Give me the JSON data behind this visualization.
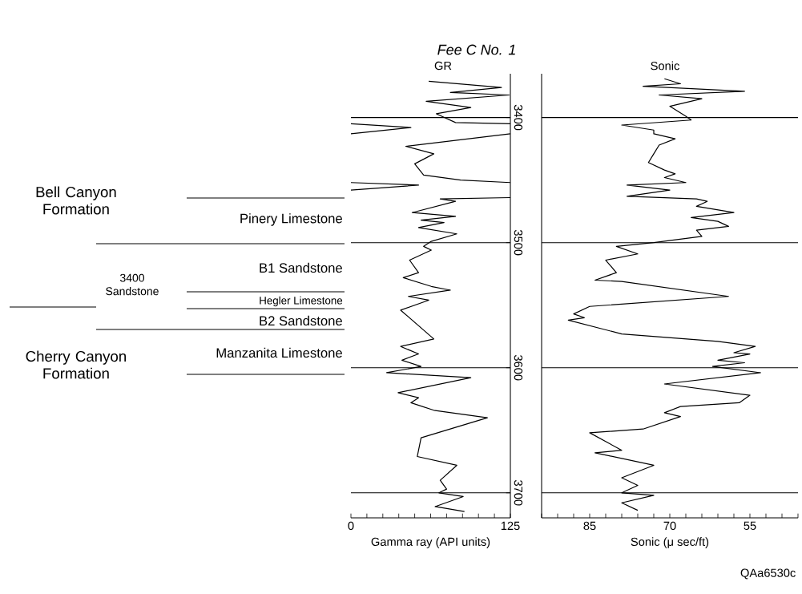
{
  "chart_data": [
    {
      "type": "other",
      "annotations": [
        "Bell Canyon Formation",
        "Cherry Canyon Formation",
        "3400 Sandstone",
        "Pinery Limestone",
        "B1 Sandstone",
        "Hegler Limestone",
        "B2 Sandstone",
        "Manzanita Limestone"
      ]
    },
    {
      "type": "line",
      "title": "Fee C No. 1",
      "subtitle": "GR",
      "xlabel": "Gamma ray (API units)",
      "xlim": [
        0,
        125
      ],
      "xticks": [
        0,
        {
          "value": 12.5,
          "label": null
        },
        {
          "value": 25,
          "label": null
        },
        {
          "value": 37.5,
          "label": null
        },
        {
          "value": 50,
          "label": null
        },
        {
          "value": 62.5,
          "label": null
        },
        {
          "value": 75,
          "label": null
        },
        {
          "value": 87.5,
          "label": null
        },
        {
          "value": 100,
          "label": null
        },
        {
          "value": 112.5,
          "label": null
        },
        125
      ],
      "ylim": [
        3720,
        3365
      ],
      "yticks": [
        3400,
        3500,
        3600,
        3700
      ],
      "series": [
        {
          "color": "#000000",
          "x": [
            61,
            118,
            78,
            124,
            59,
            94,
            67,
            82,
            125,
            null,
            0,
            47,
            0,
            null,
            125,
            43,
            65,
            50,
            57,
            86,
            125,
            null,
            0,
            53,
            0,
            null,
            125,
            70,
            82,
            48,
            82,
            55,
            73,
            53,
            83,
            63,
            57,
            63,
            46,
            53,
            41,
            63,
            78,
            45,
            61,
            39,
            65,
            39,
            53,
            40,
            55,
            28,
            94,
            37,
            53,
            47,
            65,
            107,
            55,
            52,
            83,
            70,
            75,
            69,
            88,
            66,
            89
          ],
          "values": [
            3371,
            3376,
            3380,
            3382,
            3387,
            3392,
            3397,
            3404,
            3405,
            null,
            3405,
            3408,
            3413,
            null,
            3413,
            3423,
            3429,
            3437,
            3446,
            3450,
            3452,
            null,
            3452,
            3454,
            3458,
            null,
            3464,
            3465,
            3467,
            3476,
            3479,
            3482,
            3484,
            3488,
            3493,
            3499,
            3503,
            3506,
            3514,
            3524,
            3528,
            3535,
            3538,
            3543,
            3546,
            3554,
            3577,
            3583,
            3589,
            3594,
            3599,
            3604,
            3608,
            3620,
            3624,
            3628,
            3634,
            3640,
            3656,
            3671,
            3678,
            3690,
            3697,
            3700,
            3703,
            3711,
            3715
          ]
        }
      ],
      "ref_lines": [
        {
          "axis": "y",
          "value": 3400
        },
        {
          "axis": "y",
          "value": 3500
        },
        {
          "axis": "y",
          "value": 3600
        },
        {
          "axis": "y",
          "value": 3700
        }
      ]
    },
    {
      "type": "line",
      "title": "Sonic",
      "xlabel": "Sonic (μ sec/ft)",
      "xlim": [
        94,
        46
      ],
      "xticks": [
        {
          "value": 94,
          "label": null
        },
        {
          "value": 91,
          "label": null
        },
        {
          "value": 88,
          "label": null
        },
        85,
        {
          "value": 82,
          "label": null
        },
        {
          "value": 79,
          "label": null
        },
        {
          "value": 76,
          "label": null
        },
        {
          "value": 73,
          "label": null
        },
        70,
        {
          "value": 67,
          "label": null
        },
        {
          "value": 64,
          "label": null
        },
        {
          "value": 61,
          "label": null
        },
        {
          "value": 58,
          "label": null
        },
        55,
        {
          "value": 52,
          "label": null
        },
        {
          "value": 49,
          "label": null
        },
        {
          "value": 46,
          "label": null
        }
      ],
      "ylim": [
        3720,
        3365
      ],
      "tick_labels": "x",
      "series": [
        {
          "color": "#000000",
          "x": [
            71,
            68,
            75,
            56,
            72,
            64,
            70,
            67,
            66,
            79,
            73,
            73,
            69,
            72,
            73,
            74,
            71,
            69,
            71,
            67,
            78,
            70,
            78,
            65,
            63,
            65,
            58,
            66,
            61,
            59,
            65,
            64,
            73,
            80,
            76,
            82,
            80,
            84,
            79,
            59,
            85,
            88,
            86,
            89,
            79,
            61,
            54,
            58,
            55,
            61,
            56,
            62,
            53,
            71,
            55,
            57,
            68,
            71,
            68,
            75,
            85,
            79,
            84,
            73,
            79,
            76,
            79,
            73,
            79,
            76
          ],
          "values": [
            3369,
            3373,
            3375,
            3379,
            3382,
            3385,
            3391,
            3399,
            3402,
            3406,
            3410,
            3413,
            3417,
            3422,
            3429,
            3436,
            3442,
            3445,
            3448,
            3452,
            3454,
            3458,
            3463,
            3465,
            3467,
            3471,
            3476,
            3480,
            3483,
            3487,
            3490,
            3495,
            3500,
            3503,
            3509,
            3514,
            3524,
            3530,
            3531,
            3543,
            3551,
            3557,
            3560,
            3562,
            3573,
            3579,
            3583,
            3588,
            3589,
            3594,
            3596,
            3599,
            3604,
            3613,
            3622,
            3628,
            3631,
            3636,
            3639,
            3649,
            3652,
            3666,
            3668,
            3678,
            3688,
            3694,
            3700,
            3702,
            3708,
            3714
          ]
        }
      ],
      "ref_lines": [
        {
          "axis": "y",
          "value": 3400
        },
        {
          "axis": "y",
          "value": 3500
        },
        {
          "axis": "y",
          "value": 3600
        },
        {
          "axis": "y",
          "value": 3700
        }
      ],
      "annotations": [
        "QAa6530c"
      ]
    }
  ]
}
